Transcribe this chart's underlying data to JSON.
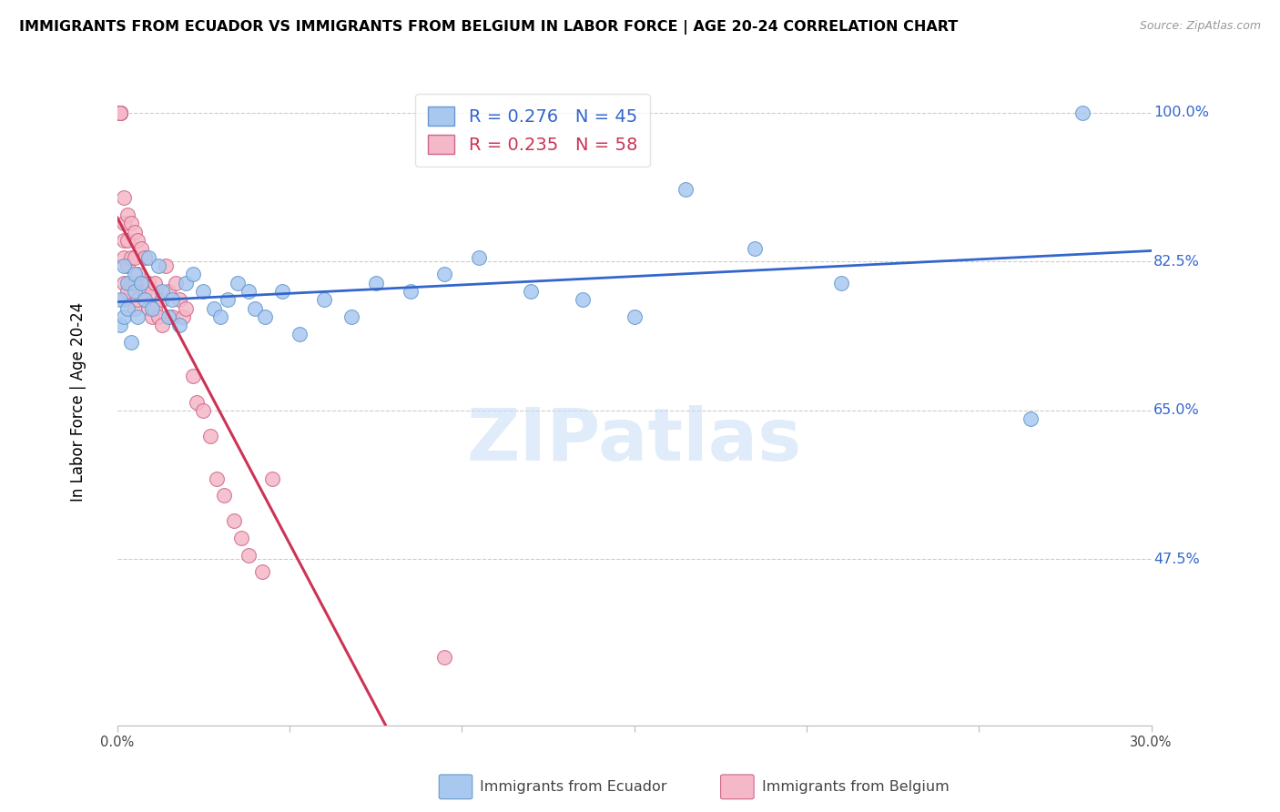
{
  "title": "IMMIGRANTS FROM ECUADOR VS IMMIGRANTS FROM BELGIUM IN LABOR FORCE | AGE 20-24 CORRELATION CHART",
  "source": "Source: ZipAtlas.com",
  "ylabel": "In Labor Force | Age 20-24",
  "xlim": [
    0.0,
    0.3
  ],
  "ylim": [
    0.28,
    1.04
  ],
  "yticks": [
    0.475,
    0.65,
    0.825,
    1.0
  ],
  "ytick_labels": [
    "47.5%",
    "65.0%",
    "82.5%",
    "100.0%"
  ],
  "xticks": [
    0.0,
    0.05,
    0.1,
    0.15,
    0.2,
    0.25,
    0.3
  ],
  "xtick_labels": [
    "0.0%",
    "",
    "",
    "",
    "",
    "",
    "30.0%"
  ],
  "ecuador_color": "#a8c8f0",
  "ecuador_edge": "#6699cc",
  "belgium_color": "#f5b8c8",
  "belgium_edge": "#cc6688",
  "ecuador_R": 0.276,
  "ecuador_N": 45,
  "belgium_R": 0.235,
  "belgium_N": 58,
  "trend_blue": "#3366cc",
  "trend_pink": "#cc3355",
  "watermark": "ZIPatlas",
  "ecuador_x": [
    0.001,
    0.001,
    0.002,
    0.002,
    0.003,
    0.003,
    0.004,
    0.005,
    0.005,
    0.006,
    0.007,
    0.008,
    0.009,
    0.01,
    0.012,
    0.013,
    0.015,
    0.016,
    0.018,
    0.02,
    0.022,
    0.025,
    0.028,
    0.03,
    0.032,
    0.035,
    0.038,
    0.04,
    0.043,
    0.048,
    0.053,
    0.06,
    0.068,
    0.075,
    0.085,
    0.095,
    0.105,
    0.12,
    0.135,
    0.15,
    0.165,
    0.185,
    0.21,
    0.265,
    0.28
  ],
  "ecuador_y": [
    0.78,
    0.75,
    0.82,
    0.76,
    0.8,
    0.77,
    0.73,
    0.79,
    0.81,
    0.76,
    0.8,
    0.78,
    0.83,
    0.77,
    0.82,
    0.79,
    0.76,
    0.78,
    0.75,
    0.8,
    0.81,
    0.79,
    0.77,
    0.76,
    0.78,
    0.8,
    0.79,
    0.77,
    0.76,
    0.79,
    0.74,
    0.78,
    0.76,
    0.8,
    0.79,
    0.81,
    0.83,
    0.79,
    0.78,
    0.76,
    0.91,
    0.84,
    0.8,
    0.64,
    1.0
  ],
  "belgium_x": [
    0.001,
    0.001,
    0.001,
    0.001,
    0.001,
    0.001,
    0.002,
    0.002,
    0.002,
    0.002,
    0.002,
    0.002,
    0.003,
    0.003,
    0.003,
    0.003,
    0.004,
    0.004,
    0.004,
    0.005,
    0.005,
    0.005,
    0.005,
    0.006,
    0.006,
    0.006,
    0.007,
    0.007,
    0.008,
    0.008,
    0.009,
    0.009,
    0.01,
    0.01,
    0.011,
    0.011,
    0.012,
    0.013,
    0.013,
    0.014,
    0.015,
    0.016,
    0.017,
    0.018,
    0.019,
    0.02,
    0.022,
    0.023,
    0.025,
    0.027,
    0.029,
    0.031,
    0.034,
    0.036,
    0.038,
    0.042,
    0.045,
    0.095
  ],
  "belgium_y": [
    1.0,
    1.0,
    1.0,
    1.0,
    1.0,
    1.0,
    0.9,
    0.87,
    0.85,
    0.83,
    0.8,
    0.78,
    0.88,
    0.85,
    0.82,
    0.79,
    0.87,
    0.83,
    0.8,
    0.86,
    0.83,
    0.8,
    0.77,
    0.85,
    0.81,
    0.78,
    0.84,
    0.8,
    0.83,
    0.79,
    0.8,
    0.77,
    0.79,
    0.76,
    0.8,
    0.77,
    0.76,
    0.78,
    0.75,
    0.82,
    0.79,
    0.76,
    0.8,
    0.78,
    0.76,
    0.77,
    0.69,
    0.66,
    0.65,
    0.62,
    0.57,
    0.55,
    0.52,
    0.5,
    0.48,
    0.46,
    0.57,
    0.36
  ]
}
